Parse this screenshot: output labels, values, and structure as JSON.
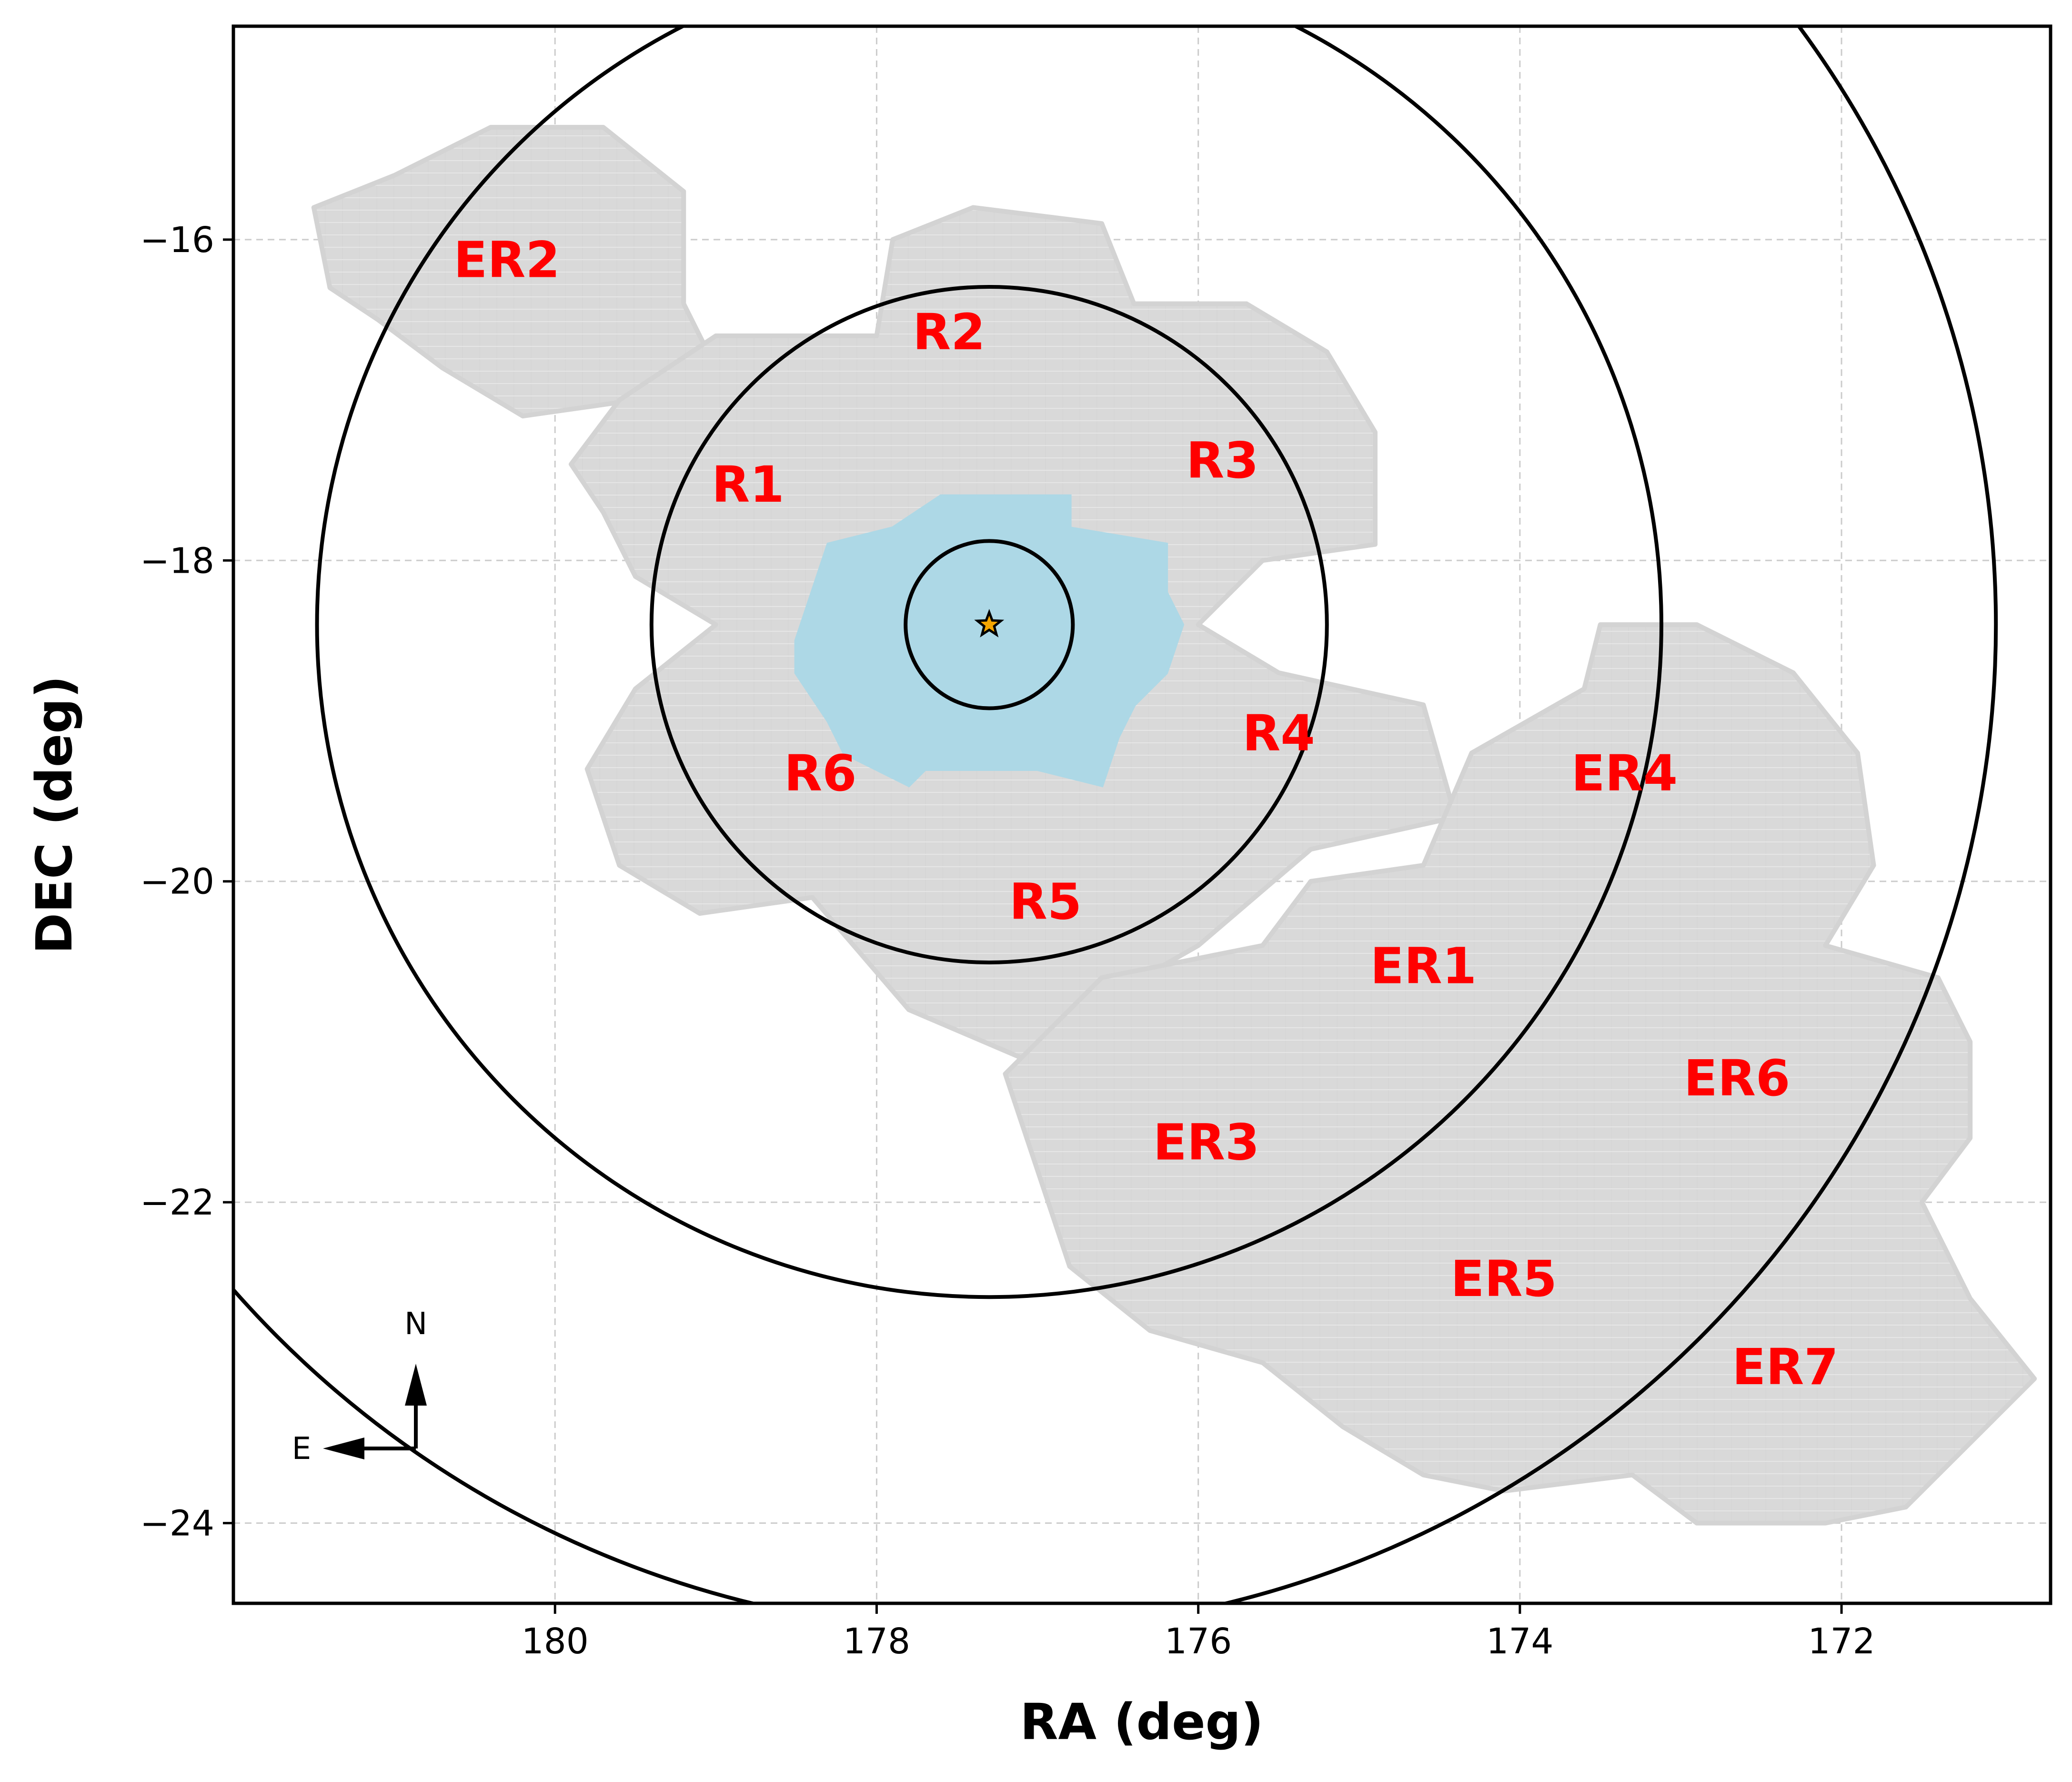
{
  "chart_data": {
    "type": "scatter",
    "title": "",
    "xlabel": "RA (deg)",
    "ylabel": "DEC (deg)",
    "xlim": [
      182.0,
      170.7
    ],
    "ylim": [
      -24.5,
      -14.67
    ],
    "x_inverted": true,
    "grid": true,
    "x_ticks": [
      180,
      178,
      176,
      174,
      172
    ],
    "y_ticks": [
      -16,
      -18,
      -20,
      -22,
      -24
    ],
    "x_tick_labels": [
      "180",
      "178",
      "176",
      "174",
      "172"
    ],
    "y_tick_labels": [
      "−16",
      "−18",
      "−20",
      "−22",
      "−24"
    ],
    "center": {
      "ra": 177.3,
      "dec": -18.4,
      "marker": "star",
      "color": "#f4a500"
    },
    "circles": [
      {
        "radius_deg": 0.52
      },
      {
        "radius_deg": 2.1
      },
      {
        "radius_deg": 4.18
      },
      {
        "radius_deg": 6.26
      }
    ],
    "regions": [
      {
        "label": "R1",
        "ra": 178.8,
        "dec": -17.55
      },
      {
        "label": "R2",
        "ra": 177.55,
        "dec": -16.6
      },
      {
        "label": "R3",
        "ra": 175.85,
        "dec": -17.4
      },
      {
        "label": "R4",
        "ra": 175.5,
        "dec": -19.1
      },
      {
        "label": "R5",
        "ra": 176.95,
        "dec": -20.15
      },
      {
        "label": "R6",
        "ra": 178.35,
        "dec": -19.35
      },
      {
        "label": "ER1",
        "ra": 174.6,
        "dec": -20.55
      },
      {
        "label": "ER2",
        "ra": 180.3,
        "dec": -16.15
      },
      {
        "label": "ER3",
        "ra": 175.95,
        "dec": -21.65
      },
      {
        "label": "ER4",
        "ra": 173.35,
        "dec": -19.35
      },
      {
        "label": "ER5",
        "ra": 174.1,
        "dec": -22.5
      },
      {
        "label": "ER6",
        "ra": 172.65,
        "dec": -21.25
      },
      {
        "label": "ER7",
        "ra": 172.35,
        "dec": -23.05
      }
    ],
    "compass": {
      "north": "N",
      "east": "E"
    },
    "colors": {
      "footprint": "#d3d3d3",
      "inner_footprint": "#add8e6",
      "region_label": "#ff0000",
      "circle": "#000000",
      "grid": "#cccccc"
    }
  }
}
